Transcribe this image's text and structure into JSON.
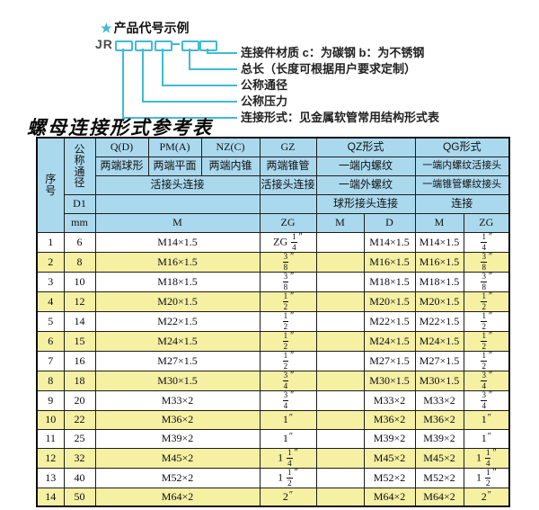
{
  "colors": {
    "header_blue": "#aad9ee",
    "row_yellow": "#f5f0a2",
    "accent_cyan": "#3fbad8"
  },
  "diagram": {
    "star": "★",
    "heading": "产品代号示例",
    "prefix": "JR",
    "labels": [
      "连接件材质  c：为碳钢  b：为不锈钢",
      "总长（长度可根据用户要求定制）",
      "公称通径",
      "公称压力",
      "连接形式：见金属软管常用结构形式表"
    ]
  },
  "table": {
    "title": "螺母连接形式参考表",
    "header": {
      "serial": "序号",
      "nominal_diameter": "公称通径",
      "d1": "D1",
      "mm": "mm",
      "col_q": "Q(D)",
      "col_pm": "PM(A)",
      "col_nz": "NZ(C)",
      "col_gz": "GZ",
      "col_qz": "QZ形式",
      "col_qg": "QG形式",
      "q_desc": "两端球形",
      "pm_desc": "两端平面",
      "nz_desc": "两端内锥",
      "gz_desc": "两端锥管",
      "qz_desc1": "一端内螺纹",
      "qg_desc1": "一端内螺纹活接头",
      "union_conn": "活接头连接",
      "gz_union_conn": "活接头连接",
      "qz_desc2": "一端外螺纹",
      "qg_desc2": "一端锥管螺纹接头",
      "qz_desc3": "球形接头连接",
      "qg_desc3": "连接",
      "sub_m": "M",
      "sub_zg": "ZG",
      "sub_qz_m": "M",
      "sub_qz_d": "D",
      "sub_qg_m": "M",
      "sub_qg_zg": "ZG"
    },
    "rows": [
      {
        "no": "1",
        "dn": "6",
        "m": "M14×1.5",
        "gz": "ZG 1/4″",
        "qz_m": "",
        "qz_d": "M14×1.5",
        "qg_m": "M14×1.5",
        "qg_zg": "1/4″"
      },
      {
        "no": "2",
        "dn": "8",
        "m": "M16×1.5",
        "gz": "3/8″",
        "qz_m": "",
        "qz_d": "M16×1.5",
        "qg_m": "M16×1.5",
        "qg_zg": "3/8″"
      },
      {
        "no": "3",
        "dn": "10",
        "m": "M18×1.5",
        "gz": "3/8″",
        "qz_m": "",
        "qz_d": "M18×1.5",
        "qg_m": "M18×1.5",
        "qg_zg": "3/8″"
      },
      {
        "no": "4",
        "dn": "12",
        "m": "M20×1.5",
        "gz": "1/2″",
        "qz_m": "",
        "qz_d": "M20×1.5",
        "qg_m": "M20×1.5",
        "qg_zg": "1/2″"
      },
      {
        "no": "5",
        "dn": "14",
        "m": "M22×1.5",
        "gz": "1/2″",
        "qz_m": "",
        "qz_d": "M22×1.5",
        "qg_m": "M22×1.5",
        "qg_zg": "1/2″"
      },
      {
        "no": "6",
        "dn": "15",
        "m": "M24×1.5",
        "gz": "1/2″",
        "qz_m": "",
        "qz_d": "M24×1.5",
        "qg_m": "M24×1.5",
        "qg_zg": "1/2″"
      },
      {
        "no": "7",
        "dn": "16",
        "m": "M27×1.5",
        "gz": "1/2″",
        "qz_m": "",
        "qz_d": "M27×1.5",
        "qg_m": "M27×1.5",
        "qg_zg": "1/2″"
      },
      {
        "no": "8",
        "dn": "18",
        "m": "M30×1.5",
        "gz": "3/4″",
        "qz_m": "",
        "qz_d": "M30×1.5",
        "qg_m": "M30×1.5",
        "qg_zg": "3/4″"
      },
      {
        "no": "9",
        "dn": "20",
        "m": "M33×2",
        "gz": "3/4″",
        "qz_m": "",
        "qz_d": "M33×2",
        "qg_m": "M33×2",
        "qg_zg": "3/4″"
      },
      {
        "no": "10",
        "dn": "22",
        "m": "M36×2",
        "gz": "1″",
        "qz_m": "",
        "qz_d": "M36×2",
        "qg_m": "M36×2",
        "qg_zg": "1″"
      },
      {
        "no": "11",
        "dn": "25",
        "m": "M39×2",
        "gz": "1″",
        "qz_m": "",
        "qz_d": "M39×2",
        "qg_m": "M39×2",
        "qg_zg": "1″"
      },
      {
        "no": "12",
        "dn": "32",
        "m": "M45×2",
        "gz": "1 1/4″",
        "qz_m": "",
        "qz_d": "M45×2",
        "qg_m": "M45×2",
        "qg_zg": "1 1/4″"
      },
      {
        "no": "13",
        "dn": "40",
        "m": "M52×2",
        "gz": "1 1/2″",
        "qz_m": "",
        "qz_d": "M52×2",
        "qg_m": "M52×2",
        "qg_zg": "1 1/2″"
      },
      {
        "no": "14",
        "dn": "50",
        "m": "M64×2",
        "gz": "2″",
        "qz_m": "",
        "qz_d": "M64×2",
        "qg_m": "M64×2",
        "qg_zg": "2″"
      }
    ]
  }
}
